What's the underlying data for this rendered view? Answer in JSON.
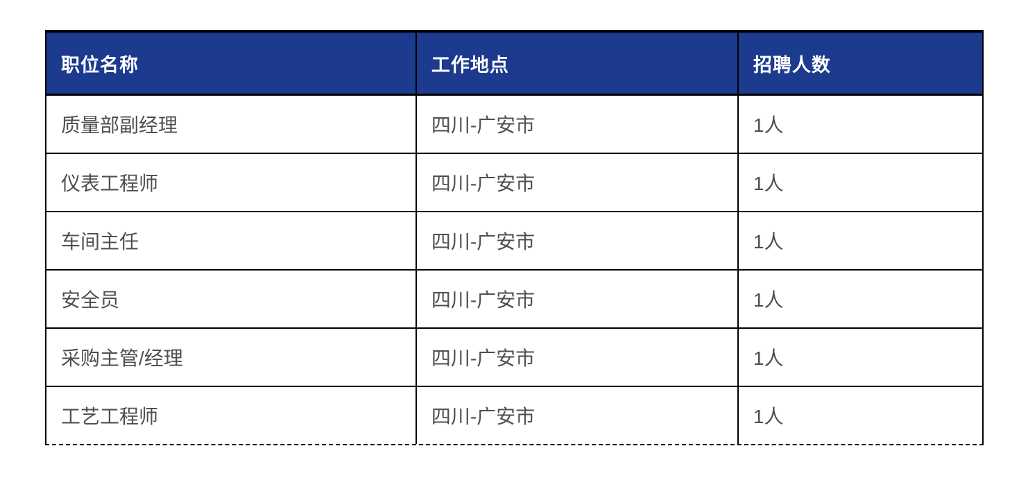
{
  "chart_data": {
    "type": "table",
    "columns": [
      "职位名称",
      "工作地点",
      "招聘人数"
    ],
    "rows": [
      [
        "质量部副经理",
        "四川-广安市",
        "1人"
      ],
      [
        "仪表工程师",
        "四川-广安市",
        "1人"
      ],
      [
        "车间主任",
        "四川-广安市",
        "1人"
      ],
      [
        "安全员",
        "四川-广安市",
        "1人"
      ],
      [
        "采购主管/经理",
        "四川-广安市",
        "1人"
      ],
      [
        "工艺工程师",
        "四川-广安市",
        "1人"
      ]
    ],
    "truncated_bottom": true,
    "colors": {
      "header_bg": "#1c3a8e",
      "header_text": "#ffffff",
      "body_text": "#4f4f4f",
      "border": "#000000"
    }
  }
}
